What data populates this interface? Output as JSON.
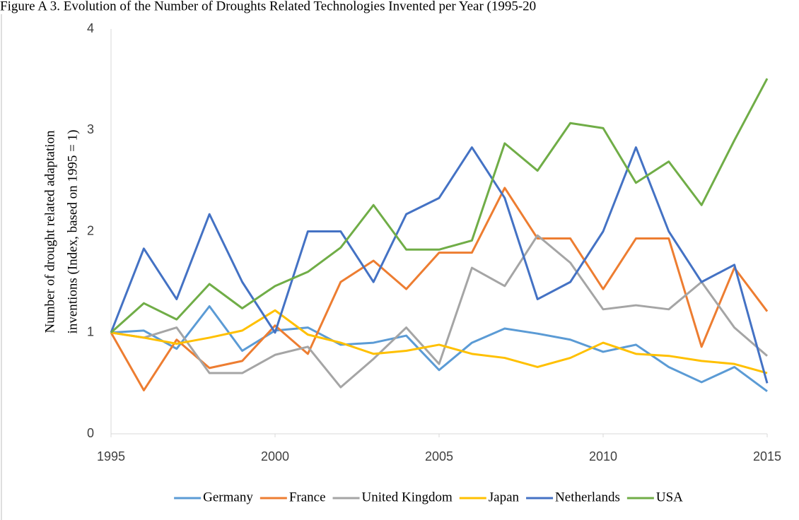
{
  "chart_data": {
    "type": "line",
    "title": "Figure A 3. Evolution of the Number of Droughts Related Technologies Invented per Year (1995-20",
    "y_label": [
      "Number of drought related adaptation",
      "inventions (Index, based on 1995 = 1)"
    ],
    "x": [
      1995,
      1996,
      1997,
      1998,
      1999,
      2000,
      2001,
      2002,
      2003,
      2004,
      2005,
      2006,
      2007,
      2008,
      2009,
      2010,
      2011,
      2012,
      2013,
      2014,
      2015
    ],
    "xlim": [
      1995,
      2015
    ],
    "xticks": [
      1995,
      2000,
      2005,
      2010,
      2015
    ],
    "ylim": [
      0,
      4
    ],
    "yticks": [
      0,
      1,
      2,
      3,
      4
    ],
    "grid": false,
    "legend": "bottom",
    "series": [
      {
        "name": "Germany",
        "color": "#5b9bd5",
        "values": [
          1.0,
          1.02,
          0.84,
          1.26,
          0.82,
          1.02,
          1.05,
          0.88,
          0.9,
          0.97,
          0.63,
          0.9,
          1.04,
          0.99,
          0.93,
          0.81,
          0.88,
          0.66,
          0.51,
          0.66,
          0.42
        ]
      },
      {
        "name": "France",
        "color": "#ed7d31",
        "values": [
          1.0,
          0.43,
          0.93,
          0.65,
          0.72,
          1.07,
          0.79,
          1.5,
          1.71,
          1.43,
          1.79,
          1.79,
          2.43,
          1.93,
          1.93,
          1.43,
          1.93,
          1.93,
          0.86,
          1.64,
          1.21
        ]
      },
      {
        "name": "United Kingdom",
        "color": "#a5a5a5",
        "values": [
          1.0,
          0.95,
          1.05,
          0.6,
          0.6,
          0.78,
          0.86,
          0.46,
          0.74,
          1.05,
          0.69,
          1.64,
          1.46,
          1.96,
          1.69,
          1.23,
          1.27,
          1.23,
          1.5,
          1.05,
          0.77
        ]
      },
      {
        "name": "Japan",
        "color": "#ffc000",
        "values": [
          1.0,
          0.95,
          0.89,
          0.95,
          1.02,
          1.22,
          0.98,
          0.9,
          0.79,
          0.82,
          0.88,
          0.79,
          0.75,
          0.66,
          0.75,
          0.9,
          0.79,
          0.77,
          0.72,
          0.69,
          0.6
        ]
      },
      {
        "name": "Netherlands",
        "color": "#4472c4",
        "values": [
          1.0,
          1.83,
          1.33,
          2.17,
          1.5,
          1.0,
          2.0,
          2.0,
          1.5,
          2.17,
          2.33,
          2.83,
          2.33,
          1.33,
          1.5,
          2.0,
          2.83,
          2.0,
          1.5,
          1.67,
          0.5
        ]
      },
      {
        "name": "USA",
        "color": "#70ad47",
        "values": [
          1.0,
          1.29,
          1.13,
          1.48,
          1.24,
          1.46,
          1.6,
          1.84,
          2.26,
          1.82,
          1.82,
          1.91,
          2.87,
          2.6,
          3.07,
          3.02,
          2.48,
          2.69,
          2.26,
          2.9,
          3.51
        ]
      }
    ]
  }
}
